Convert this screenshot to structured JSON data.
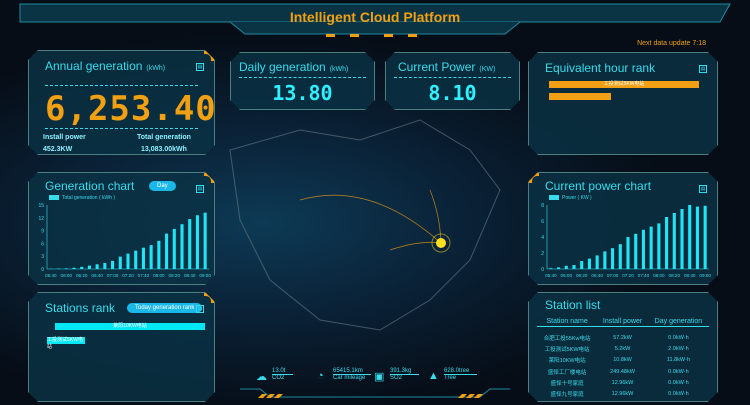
{
  "header": {
    "title": "Intelligent Cloud Platform",
    "next_update": "Next data update 7:18"
  },
  "annual": {
    "title": "Annual generation",
    "unit": "(kWh)",
    "value": "6,253.40",
    "install_label": "Install power",
    "install_value": "452.3KW",
    "total_label": "Total generation",
    "total_value": "13,083.00kWh"
  },
  "daily": {
    "title": "Daily generation",
    "unit": "(kWh)",
    "value": "13.80"
  },
  "current": {
    "title": "Current Power",
    "unit": "(KW)",
    "value": "8.10"
  },
  "equiv": {
    "title": "Equivalent hour rank",
    "items": [
      {
        "label": "工投测试5KW电站",
        "value": 1.0
      },
      {
        "label": "",
        "value": 0.41
      }
    ]
  },
  "genchart": {
    "title": "Generation chart",
    "toggle": "Day"
  },
  "powchart": {
    "title": "Current power chart"
  },
  "rank": {
    "title": "Stations rank",
    "toggle": "Today generation rank",
    "items": [
      {
        "label": "莱阳10KW电站",
        "value": 1.0
      },
      {
        "label": "工投测试5KW电站",
        "value": 0.17
      }
    ]
  },
  "stationlist": {
    "title": "Station list",
    "columns": [
      "Station name",
      "Install power",
      "Day generation"
    ],
    "rows": [
      [
        "合肥工投55Kw电站",
        "57.2kW",
        "0.0kW·h"
      ],
      [
        "工投测试5KW电站",
        "5.2kW",
        "2.0kW·h"
      ],
      [
        "莱阳10KW电站",
        "10.8kW",
        "11.8kW·h"
      ],
      [
        "盛怿工厂楼电站",
        "249.48kW",
        "0.0kW·h"
      ],
      [
        "盛怿十号家庭",
        "12.96kW",
        "0.0kW·h"
      ],
      [
        "盛怿九号家庭",
        "12.96kW",
        "0.0kW·h"
      ]
    ]
  },
  "footer": [
    {
      "icon": "tree-co2-icon",
      "value": "13.0t",
      "label": "CO2"
    },
    {
      "icon": "speedometer-icon",
      "value": "65415.1km",
      "label": "Car mileage"
    },
    {
      "icon": "so2-icon",
      "value": "391.3kg",
      "label": "SO2"
    },
    {
      "icon": "tree-icon",
      "value": "628.0tree",
      "label": "Tree"
    }
  ],
  "colors": {
    "accent": "#f0a012",
    "cyan": "#37dceb"
  },
  "chart_data": [
    {
      "type": "bar",
      "series": [
        {
          "name": "Total generation ( kWh )",
          "values": [
            0.05,
            0.1,
            0.15,
            0.3,
            0.5,
            0.8,
            1.1,
            1.4,
            1.9,
            2.9,
            3.6,
            4.3,
            5.0,
            5.6,
            6.6,
            8.3,
            9.4,
            10.5,
            11.7,
            12.6,
            13.2
          ]
        }
      ],
      "categories": [
        "05:40",
        "05:50",
        "06:00",
        "06:10",
        "06:20",
        "06:30",
        "06:40",
        "06:50",
        "07:00",
        "07:10",
        "07:20",
        "07:30",
        "07:40",
        "07:50",
        "08:00",
        "08:10",
        "08:20",
        "08:30",
        "08:40",
        "08:50",
        "09:00"
      ],
      "xticks": [
        "05:40",
        "06:00",
        "06:20",
        "06:40",
        "07:00",
        "07:20",
        "07:40",
        "08:00",
        "08:20",
        "08:40",
        "09:00"
      ],
      "yticks": [
        0,
        3,
        6,
        9,
        12,
        15
      ],
      "ylim": [
        0,
        15
      ]
    },
    {
      "type": "bar",
      "series": [
        {
          "name": "Power ( KW )",
          "values": [
            0.1,
            0.2,
            0.4,
            0.5,
            1.0,
            1.3,
            1.7,
            2.2,
            2.6,
            3.1,
            4.0,
            4.4,
            4.9,
            5.3,
            5.7,
            6.5,
            7.0,
            7.5,
            8.0,
            7.8,
            7.9
          ]
        }
      ],
      "categories": [
        "05:40",
        "05:50",
        "06:00",
        "06:10",
        "06:20",
        "06:30",
        "06:40",
        "06:50",
        "07:00",
        "07:10",
        "07:20",
        "07:30",
        "07:40",
        "07:50",
        "08:00",
        "08:10",
        "08:20",
        "08:30",
        "08:40",
        "08:50",
        "09:00"
      ],
      "xticks": [
        "05:40",
        "06:00",
        "06:20",
        "06:40",
        "07:00",
        "07:20",
        "07:40",
        "08:00",
        "08:20",
        "08:40",
        "09:00"
      ],
      "yticks": [
        0,
        2,
        4,
        6,
        8
      ],
      "ylim": [
        0,
        8
      ]
    }
  ]
}
